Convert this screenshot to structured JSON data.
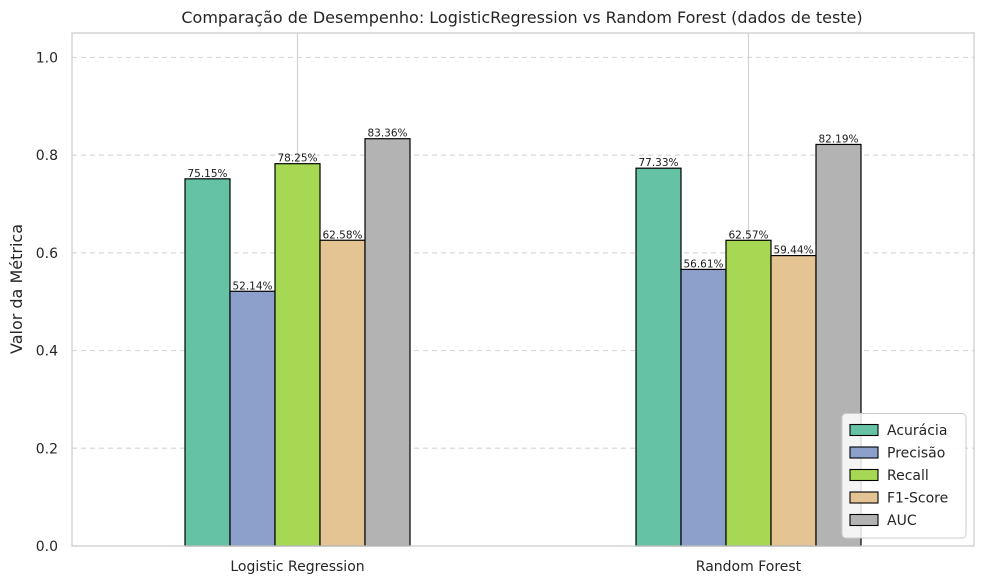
{
  "chart_data": {
    "type": "bar",
    "title": "Comparação de Desempenho: LogisticRegression vs Random Forest (dados de teste)",
    "xlabel": "",
    "ylabel": "Valor da Métrica",
    "ylim": [
      0,
      1.05
    ],
    "yticks": [
      "0.0",
      "0.2",
      "0.4",
      "0.6",
      "0.8",
      "1.0"
    ],
    "grid": true,
    "legend_position": "lower-right",
    "categories": [
      "Logistic Regression",
      "Random Forest"
    ],
    "series": [
      {
        "name": "Acurácia",
        "color": "#66c2a5",
        "values": [
          0.7515,
          0.7733
        ],
        "labels": [
          "75.15%",
          "77.33%"
        ]
      },
      {
        "name": "Precisão",
        "color": "#8da0cb",
        "values": [
          0.5214,
          0.5661
        ],
        "labels": [
          "52.14%",
          "56.61%"
        ]
      },
      {
        "name": "Recall",
        "color": "#a6d854",
        "values": [
          0.7825,
          0.6257
        ],
        "labels": [
          "78.25%",
          "62.57%"
        ]
      },
      {
        "name": "F1-Score",
        "color": "#e5c494",
        "values": [
          0.6258,
          0.5944
        ],
        "labels": [
          "62.58%",
          "59.44%"
        ]
      },
      {
        "name": "AUC",
        "color": "#b3b3b3",
        "values": [
          0.8336,
          0.8219
        ],
        "labels": [
          "83.36%",
          "82.19%"
        ]
      }
    ]
  }
}
